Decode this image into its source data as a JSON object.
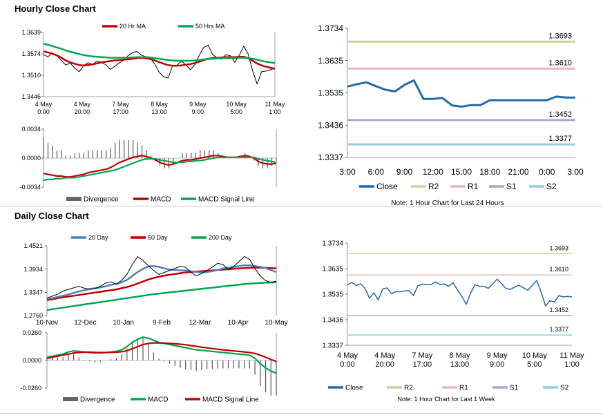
{
  "sections": {
    "hourly_title": "Hourly Close Chart",
    "daily_title": "Daily Close Chart"
  },
  "chart_data": [
    {
      "id": "hourly_price",
      "type": "line",
      "title": "Hourly Close Chart",
      "ylim": [
        1.3446,
        1.3639
      ],
      "yticks": [
        "1.3639",
        "1.3574",
        "1.3510",
        "1.3446"
      ],
      "xticks": [
        [
          "4 May",
          "0:00"
        ],
        [
          "4 May",
          "20:00"
        ],
        [
          "7 May",
          "17:00"
        ],
        [
          "8 May",
          "13:00"
        ],
        [
          "9 May",
          "9:00"
        ],
        [
          "10 May",
          "5:00"
        ],
        [
          "11 May",
          "1:00"
        ]
      ],
      "legend": [
        {
          "name": "20 Hr MA",
          "color": "#c00000"
        },
        {
          "name": "50 Hrs MA",
          "color": "#00a651"
        }
      ],
      "series": [
        {
          "name": "Close",
          "color": "#000000",
          "values": [
            1.3572,
            1.3566,
            1.3578,
            1.3569,
            1.3555,
            1.3541,
            1.3547,
            1.3532,
            1.3521,
            1.3539,
            1.3548,
            1.3543,
            1.3553,
            1.3549,
            1.3542,
            1.3528,
            1.3537,
            1.3547,
            1.3556,
            1.3569,
            1.3578,
            1.3582,
            1.3571,
            1.3566,
            1.3562,
            1.3544,
            1.3519,
            1.3506,
            1.3502,
            1.3539,
            1.3541,
            1.3552,
            1.3542,
            1.3527,
            1.3542,
            1.3571,
            1.3594,
            1.3601,
            1.3572,
            1.3563,
            1.3559,
            1.3572,
            1.3569,
            1.3549,
            1.3571,
            1.3598,
            1.3574,
            1.3524,
            1.3484,
            1.3521,
            1.3523,
            1.3527,
            1.3532
          ]
        },
        {
          "name": "20 Hr MA",
          "color": "#c00000",
          "values": [
            1.3582,
            1.3579,
            1.3575,
            1.357,
            1.3563,
            1.3555,
            1.3549,
            1.3545,
            1.3541,
            1.354,
            1.3541,
            1.3543,
            1.3546,
            1.3549,
            1.3551,
            1.3553,
            1.3555,
            1.3556,
            1.3557,
            1.3558,
            1.356,
            1.3562,
            1.3563,
            1.3562,
            1.3559,
            1.3555,
            1.355,
            1.3545,
            1.3541,
            1.3539,
            1.3539,
            1.354,
            1.3542,
            1.3544,
            1.3547,
            1.3551,
            1.3556,
            1.356,
            1.3562,
            1.3563,
            1.3564,
            1.3565,
            1.3565,
            1.3565,
            1.3566,
            1.3566,
            1.3562,
            1.3554,
            1.3546,
            1.354,
            1.3536,
            1.3533,
            1.353
          ]
        },
        {
          "name": "50 Hrs MA",
          "color": "#00a651",
          "values": [
            1.3605,
            1.3602,
            1.3598,
            1.3594,
            1.359,
            1.3585,
            1.3581,
            1.3578,
            1.3574,
            1.3571,
            1.3569,
            1.3567,
            1.3566,
            1.3565,
            1.3564,
            1.3563,
            1.3563,
            1.3563,
            1.3563,
            1.3563,
            1.3564,
            1.3565,
            1.3565,
            1.3565,
            1.3564,
            1.3562,
            1.356,
            1.3558,
            1.3556,
            1.3555,
            1.3554,
            1.3554,
            1.3554,
            1.3554,
            1.3555,
            1.3556,
            1.3558,
            1.3559,
            1.356,
            1.3561,
            1.3562,
            1.3562,
            1.3562,
            1.3562,
            1.3563,
            1.3563,
            1.3562,
            1.356,
            1.3557,
            1.3554,
            1.3551,
            1.3549,
            1.3547
          ]
        }
      ]
    },
    {
      "id": "hourly_macd",
      "type": "line",
      "ylim": [
        -0.0034,
        0.0034
      ],
      "yticks": [
        "0.0034",
        "0.0000",
        "-0.0034"
      ],
      "legend": [
        {
          "name": "Divergence",
          "color": "#666666"
        },
        {
          "name": "MACD",
          "color": "#c00000"
        },
        {
          "name": "MACD Signal Line",
          "color": "#00a651"
        }
      ],
      "series": [
        {
          "name": "MACD",
          "color": "#c00000",
          "values": [
            -0.0018,
            -0.0019,
            -0.002,
            -0.0021,
            -0.0021,
            -0.0022,
            -0.0022,
            -0.0021,
            -0.002,
            -0.0019,
            -0.0017,
            -0.0016,
            -0.0015,
            -0.0014,
            -0.0013,
            -0.0011,
            -0.0008,
            -0.0005,
            -0.0003,
            -0.0001,
            0.0001,
            0.0002,
            0.0003,
            0.0002,
            0.0,
            -0.0002,
            -0.0005,
            -0.0007,
            -0.0008,
            -0.0007,
            -0.0005,
            -0.0003,
            -0.0002,
            -0.0002,
            -0.0001,
            0.0,
            0.0001,
            0.0002,
            0.0003,
            0.0003,
            0.0002,
            0.0001,
            0.0001,
            0.0001,
            0.0002,
            0.0003,
            0.0002,
            0.0,
            -0.0004,
            -0.0006,
            -0.0007,
            -0.0007,
            -0.0006
          ]
        },
        {
          "name": "MACD Signal Line",
          "color": "#00a651",
          "values": [
            -0.0026,
            -0.0025,
            -0.0025,
            -0.0024,
            -0.0024,
            -0.0023,
            -0.0023,
            -0.0023,
            -0.0022,
            -0.0021,
            -0.002,
            -0.0019,
            -0.0018,
            -0.0017,
            -0.0016,
            -0.0015,
            -0.0014,
            -0.0012,
            -0.001,
            -0.0008,
            -0.0006,
            -0.0004,
            -0.0002,
            -0.0001,
            -0.0001,
            -0.0001,
            -0.0002,
            -0.0003,
            -0.0004,
            -0.0005,
            -0.0005,
            -0.0005,
            -0.0004,
            -0.0004,
            -0.0003,
            -0.0003,
            -0.0002,
            -0.0001,
            0.0,
            0.0001,
            0.0001,
            0.0001,
            0.0001,
            0.0001,
            0.0001,
            0.0001,
            0.0001,
            0.0001,
            -0.0001,
            -0.0002,
            -0.0003,
            -0.0004,
            -0.0005
          ]
        }
      ]
    },
    {
      "id": "hourly_levels",
      "type": "line",
      "ylim": [
        1.3337,
        1.3734
      ],
      "yticks": [
        "1.3734",
        "1.3635",
        "1.3535",
        "1.3436",
        "1.3337"
      ],
      "xticks": [
        "3:00",
        "6:00",
        "9:00",
        "12:00",
        "15:00",
        "18:00",
        "21:00",
        "0:00",
        "3:00"
      ],
      "levels": [
        {
          "name": "R2",
          "value": 1.3693,
          "label": "1.3693",
          "color": "#c4d79b"
        },
        {
          "name": "R1",
          "value": 1.361,
          "label": "1.3610",
          "color": "#e6b9b8"
        },
        {
          "name": "S1",
          "value": 1.3452,
          "label": "1.3452",
          "color": "#b3a2c7"
        },
        {
          "name": "S2",
          "value": 1.3377,
          "label": "1.3377",
          "color": "#93cddd"
        }
      ],
      "series": [
        {
          "name": "Close",
          "color": "#1f6ab0",
          "values": [
            1.3555,
            1.3562,
            1.3568,
            1.3556,
            1.3545,
            1.354,
            1.356,
            1.3574,
            1.3517,
            1.3517,
            1.352,
            1.3497,
            1.3493,
            1.3498,
            1.3498,
            1.3513,
            1.3513,
            1.3513,
            1.3513,
            1.3513,
            1.3513,
            1.3513,
            1.3524,
            1.3521,
            1.3521
          ]
        }
      ],
      "legend": [
        {
          "name": "Close",
          "color": "#1f6ab0"
        },
        {
          "name": "R2",
          "color": "#c4d79b"
        },
        {
          "name": "R1",
          "color": "#e6b9b8"
        },
        {
          "name": "S1",
          "color": "#b3a2c7"
        },
        {
          "name": "S2",
          "color": "#93cddd"
        }
      ],
      "note": "Note: 1 Hour Chart for Last 24 Hours"
    },
    {
      "id": "daily_price",
      "type": "line",
      "title": "Daily Close Chart",
      "ylim": [
        1.276,
        1.4521
      ],
      "yticks": [
        "1.4521",
        "1.3934",
        "1.3347",
        "1.2760"
      ],
      "xticks": [
        "10-Nov",
        "12-Dec",
        "10-Jan",
        "9-Feb",
        "12-Mar",
        "10-Apr",
        "10-May"
      ],
      "legend": [
        {
          "name": "20 Day",
          "color": "#4f81bd"
        },
        {
          "name": "50 Day",
          "color": "#c00000"
        },
        {
          "name": "200 Day",
          "color": "#00a651"
        }
      ],
      "series": [
        {
          "name": "Close",
          "color": "#000000",
          "values": [
            1.32,
            1.325,
            1.33,
            1.338,
            1.342,
            1.346,
            1.35,
            1.345,
            1.343,
            1.344,
            1.35,
            1.358,
            1.361,
            1.355,
            1.365,
            1.38,
            1.405,
            1.425,
            1.415,
            1.402,
            1.39,
            1.38,
            1.385,
            1.39,
            1.395,
            1.4,
            1.398,
            1.385,
            1.376,
            1.382,
            1.39,
            1.398,
            1.408,
            1.405,
            1.392,
            1.4,
            1.412,
            1.425,
            1.418,
            1.395,
            1.376,
            1.364,
            1.36,
            1.363
          ]
        },
        {
          "name": "20 Day",
          "color": "#4f81bd",
          "values": [
            1.318,
            1.32,
            1.323,
            1.326,
            1.329,
            1.333,
            1.337,
            1.34,
            1.343,
            1.345,
            1.347,
            1.35,
            1.354,
            1.356,
            1.36,
            1.366,
            1.376,
            1.386,
            1.394,
            1.4,
            1.401,
            1.399,
            1.395,
            1.392,
            1.391,
            1.39,
            1.39,
            1.388,
            1.386,
            1.385,
            1.386,
            1.388,
            1.391,
            1.395,
            1.397,
            1.399,
            1.401,
            1.403,
            1.403,
            1.401,
            1.399,
            1.396,
            1.391,
            1.386
          ]
        },
        {
          "name": "50 Day",
          "color": "#c00000",
          "values": [
            1.315,
            1.317,
            1.32,
            1.322,
            1.324,
            1.326,
            1.328,
            1.33,
            1.332,
            1.334,
            1.336,
            1.338,
            1.34,
            1.342,
            1.345,
            1.348,
            1.352,
            1.357,
            1.362,
            1.367,
            1.371,
            1.374,
            1.377,
            1.379,
            1.381,
            1.383,
            1.385,
            1.386,
            1.387,
            1.388,
            1.389,
            1.39,
            1.391,
            1.392,
            1.393,
            1.394,
            1.395,
            1.396,
            1.3965,
            1.397,
            1.397,
            1.3965,
            1.396,
            1.395
          ]
        },
        {
          "name": "200 Day",
          "color": "#00a651",
          "values": [
            1.29,
            1.292,
            1.294,
            1.296,
            1.298,
            1.3,
            1.302,
            1.304,
            1.306,
            1.308,
            1.31,
            1.312,
            1.314,
            1.316,
            1.318,
            1.32,
            1.322,
            1.324,
            1.326,
            1.328,
            1.33,
            1.3315,
            1.333,
            1.3345,
            1.336,
            1.3375,
            1.339,
            1.3405,
            1.342,
            1.3435,
            1.345,
            1.3465,
            1.348,
            1.3495,
            1.351,
            1.3525,
            1.354,
            1.3555,
            1.3565,
            1.3575,
            1.3585,
            1.359,
            1.3595,
            1.36
          ]
        }
      ]
    },
    {
      "id": "daily_macd",
      "type": "line",
      "ylim": [
        -0.026,
        0.026
      ],
      "yticks": [
        "0.0260",
        "0.0000",
        "-0.0260"
      ],
      "legend": [
        {
          "name": "Divergence",
          "color": "#666666"
        },
        {
          "name": "MACD",
          "color": "#00a651"
        },
        {
          "name": "MACD Signal Line",
          "color": "#c00000"
        }
      ],
      "series": [
        {
          "name": "MACD",
          "color": "#00a651",
          "values": [
            0.003,
            0.004,
            0.005,
            0.006,
            0.008,
            0.009,
            0.0085,
            0.008,
            0.0075,
            0.007,
            0.007,
            0.0075,
            0.008,
            0.0085,
            0.01,
            0.013,
            0.017,
            0.02,
            0.022,
            0.021,
            0.019,
            0.017,
            0.016,
            0.015,
            0.014,
            0.013,
            0.012,
            0.011,
            0.01,
            0.0095,
            0.009,
            0.0085,
            0.008,
            0.0075,
            0.007,
            0.0065,
            0.006,
            0.0055,
            0.005,
            0.002,
            -0.003,
            -0.007,
            -0.01,
            -0.012
          ]
        },
        {
          "name": "MACD Signal Line",
          "color": "#c00000",
          "values": [
            0.002,
            0.003,
            0.004,
            0.005,
            0.006,
            0.007,
            0.0075,
            0.0078,
            0.0078,
            0.0076,
            0.0075,
            0.0075,
            0.0076,
            0.0078,
            0.0082,
            0.0092,
            0.011,
            0.013,
            0.015,
            0.016,
            0.0165,
            0.0165,
            0.0163,
            0.016,
            0.0157,
            0.0153,
            0.0148,
            0.014,
            0.0133,
            0.0125,
            0.0118,
            0.0112,
            0.0106,
            0.01,
            0.0095,
            0.009,
            0.0085,
            0.008,
            0.0075,
            0.0065,
            0.005,
            0.003,
            0.001,
            -0.001
          ]
        }
      ]
    },
    {
      "id": "weekly_levels",
      "type": "line",
      "ylim": [
        1.3337,
        1.3734
      ],
      "yticks": [
        "1.3734",
        "1.3635",
        "1.3535",
        "1.3436",
        "1.3337"
      ],
      "xticks": [
        [
          "4 May",
          "0:00"
        ],
        [
          "4 May",
          "20:00"
        ],
        [
          "7 May",
          "17:00"
        ],
        [
          "8 May",
          "13:00"
        ],
        [
          "9 May",
          "9:00"
        ],
        [
          "10 May",
          "5:00"
        ],
        [
          "11 May",
          "1:00"
        ]
      ],
      "levels": [
        {
          "name": "R2",
          "value": 1.3693,
          "label": "1.3693",
          "color": "#c4d79b"
        },
        {
          "name": "R1",
          "value": 1.361,
          "label": "1.3610",
          "color": "#e6b9b8"
        },
        {
          "name": "S1",
          "value": 1.3452,
          "label": "1.3452",
          "color": "#b3a2c7"
        },
        {
          "name": "S2",
          "value": 1.3377,
          "label": "1.3377",
          "color": "#93cddd"
        }
      ],
      "series": [
        {
          "name": "Close",
          "color": "#1f6ab0",
          "values": [
            1.3572,
            1.3581,
            1.3569,
            1.3576,
            1.3558,
            1.352,
            1.3541,
            1.3513,
            1.3555,
            1.356,
            1.3538,
            1.3545,
            1.3545,
            1.3548,
            1.3549,
            1.353,
            1.3568,
            1.3575,
            1.3572,
            1.3573,
            1.3583,
            1.3573,
            1.3575,
            1.3566,
            1.358,
            1.3552,
            1.3526,
            1.3496,
            1.354,
            1.3572,
            1.3566,
            1.3566,
            1.3558,
            1.3575,
            1.3594,
            1.3577,
            1.3558,
            1.3554,
            1.3563,
            1.357,
            1.356,
            1.3551,
            1.357,
            1.3588,
            1.3545,
            1.3489,
            1.351,
            1.3505,
            1.353,
            1.3525,
            1.3527,
            1.3525
          ]
        }
      ],
      "legend": [
        {
          "name": "Close",
          "color": "#1f6ab0"
        },
        {
          "name": "R2",
          "color": "#c4d79b"
        },
        {
          "name": "R1",
          "color": "#e6b9b8"
        },
        {
          "name": "S1",
          "color": "#b3a2c7"
        },
        {
          "name": "S2",
          "color": "#93cddd"
        }
      ],
      "note": "Note: 1 Hour Chart for Last 1 Week"
    }
  ]
}
